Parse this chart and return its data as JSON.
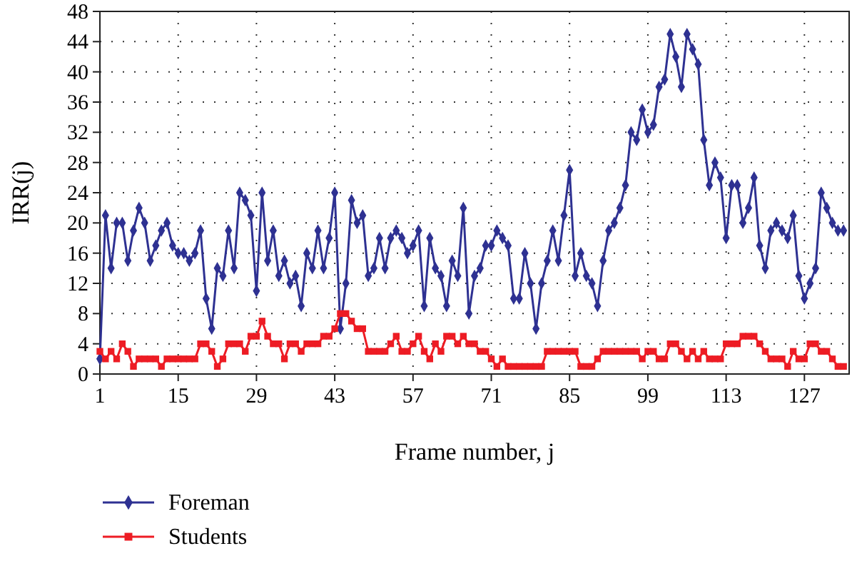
{
  "chart_data": {
    "type": "line",
    "xlabel": "Frame number, j",
    "ylabel": "IRR(j)",
    "x": [
      1,
      2,
      3,
      4,
      5,
      6,
      7,
      8,
      9,
      10,
      11,
      12,
      13,
      14,
      15,
      16,
      17,
      18,
      19,
      20,
      21,
      22,
      23,
      24,
      25,
      26,
      27,
      28,
      29,
      30,
      31,
      32,
      33,
      34,
      35,
      36,
      37,
      38,
      39,
      40,
      41,
      42,
      43,
      44,
      45,
      46,
      47,
      48,
      49,
      50,
      51,
      52,
      53,
      54,
      55,
      56,
      57,
      58,
      59,
      60,
      61,
      62,
      63,
      64,
      65,
      66,
      67,
      68,
      69,
      70,
      71,
      72,
      73,
      74,
      75,
      76,
      77,
      78,
      79,
      80,
      81,
      82,
      83,
      84,
      85,
      86,
      87,
      88,
      89,
      90,
      91,
      92,
      93,
      94,
      95,
      96,
      97,
      98,
      99,
      100,
      101,
      102,
      103,
      104,
      105,
      106,
      107,
      108,
      109,
      110,
      111,
      112,
      113,
      114,
      115,
      116,
      117,
      118,
      119,
      120,
      121,
      122,
      123,
      124,
      125,
      126,
      127,
      128,
      129,
      130,
      131,
      132,
      133,
      134
    ],
    "series": [
      {
        "name": "Foreman",
        "color": "#2e3192",
        "marker": "diamond",
        "values": [
          2,
          21,
          14,
          20,
          20,
          15,
          19,
          22,
          20,
          15,
          17,
          19,
          20,
          17,
          16,
          16,
          15,
          16,
          19,
          10,
          6,
          14,
          13,
          19,
          14,
          24,
          23,
          21,
          11,
          24,
          15,
          19,
          13,
          15,
          12,
          13,
          9,
          16,
          14,
          19,
          14,
          18,
          24,
          6,
          12,
          23,
          20,
          21,
          13,
          14,
          18,
          14,
          18,
          19,
          18,
          16,
          17,
          19,
          9,
          18,
          14,
          13,
          9,
          15,
          13,
          22,
          8,
          13,
          14,
          17,
          17,
          19,
          18,
          17,
          10,
          10,
          16,
          12,
          6,
          12,
          15,
          19,
          15,
          21,
          27,
          13,
          16,
          13,
          12,
          9,
          15,
          19,
          20,
          22,
          25,
          32,
          31,
          35,
          32,
          33,
          38,
          39,
          45,
          42,
          38,
          45,
          43,
          41,
          31,
          25,
          28,
          26,
          18,
          25,
          25,
          20,
          22,
          26,
          17,
          14,
          19,
          20,
          19,
          18,
          21,
          13,
          10,
          12,
          14,
          24,
          22,
          20,
          19,
          19
        ]
      },
      {
        "name": "Students",
        "color": "#ed1c24",
        "marker": "square",
        "values": [
          3,
          2,
          3,
          2,
          4,
          3,
          1,
          2,
          2,
          2,
          2,
          1,
          2,
          2,
          2,
          2,
          2,
          2,
          4,
          4,
          3,
          1,
          2,
          4,
          4,
          4,
          3,
          5,
          5,
          7,
          5,
          4,
          4,
          2,
          4,
          4,
          3,
          4,
          4,
          4,
          5,
          5,
          6,
          8,
          8,
          7,
          6,
          6,
          3,
          3,
          3,
          3,
          4,
          5,
          3,
          3,
          4,
          5,
          3,
          2,
          4,
          3,
          5,
          5,
          4,
          5,
          4,
          4,
          3,
          3,
          2,
          1,
          2,
          1,
          1,
          1,
          1,
          1,
          1,
          1,
          3,
          3,
          3,
          3,
          3,
          3,
          1,
          1,
          1,
          2,
          3,
          3,
          3,
          3,
          3,
          3,
          3,
          2,
          3,
          3,
          2,
          2,
          4,
          4,
          3,
          2,
          3,
          2,
          3,
          2,
          2,
          2,
          4,
          4,
          4,
          5,
          5,
          5,
          4,
          3,
          2,
          2,
          2,
          1,
          3,
          2,
          2,
          4,
          4,
          3,
          3,
          2,
          1,
          1
        ]
      }
    ],
    "xlim": [
      1,
      135
    ],
    "xticks": [
      1,
      15,
      29,
      43,
      57,
      71,
      85,
      99,
      113,
      127
    ],
    "ylim": [
      0,
      48
    ],
    "yticks": [
      0,
      4,
      8,
      12,
      16,
      20,
      24,
      28,
      32,
      36,
      40,
      44,
      48
    ],
    "grid": true,
    "legend": "bottom left",
    "line_style": "solid"
  }
}
